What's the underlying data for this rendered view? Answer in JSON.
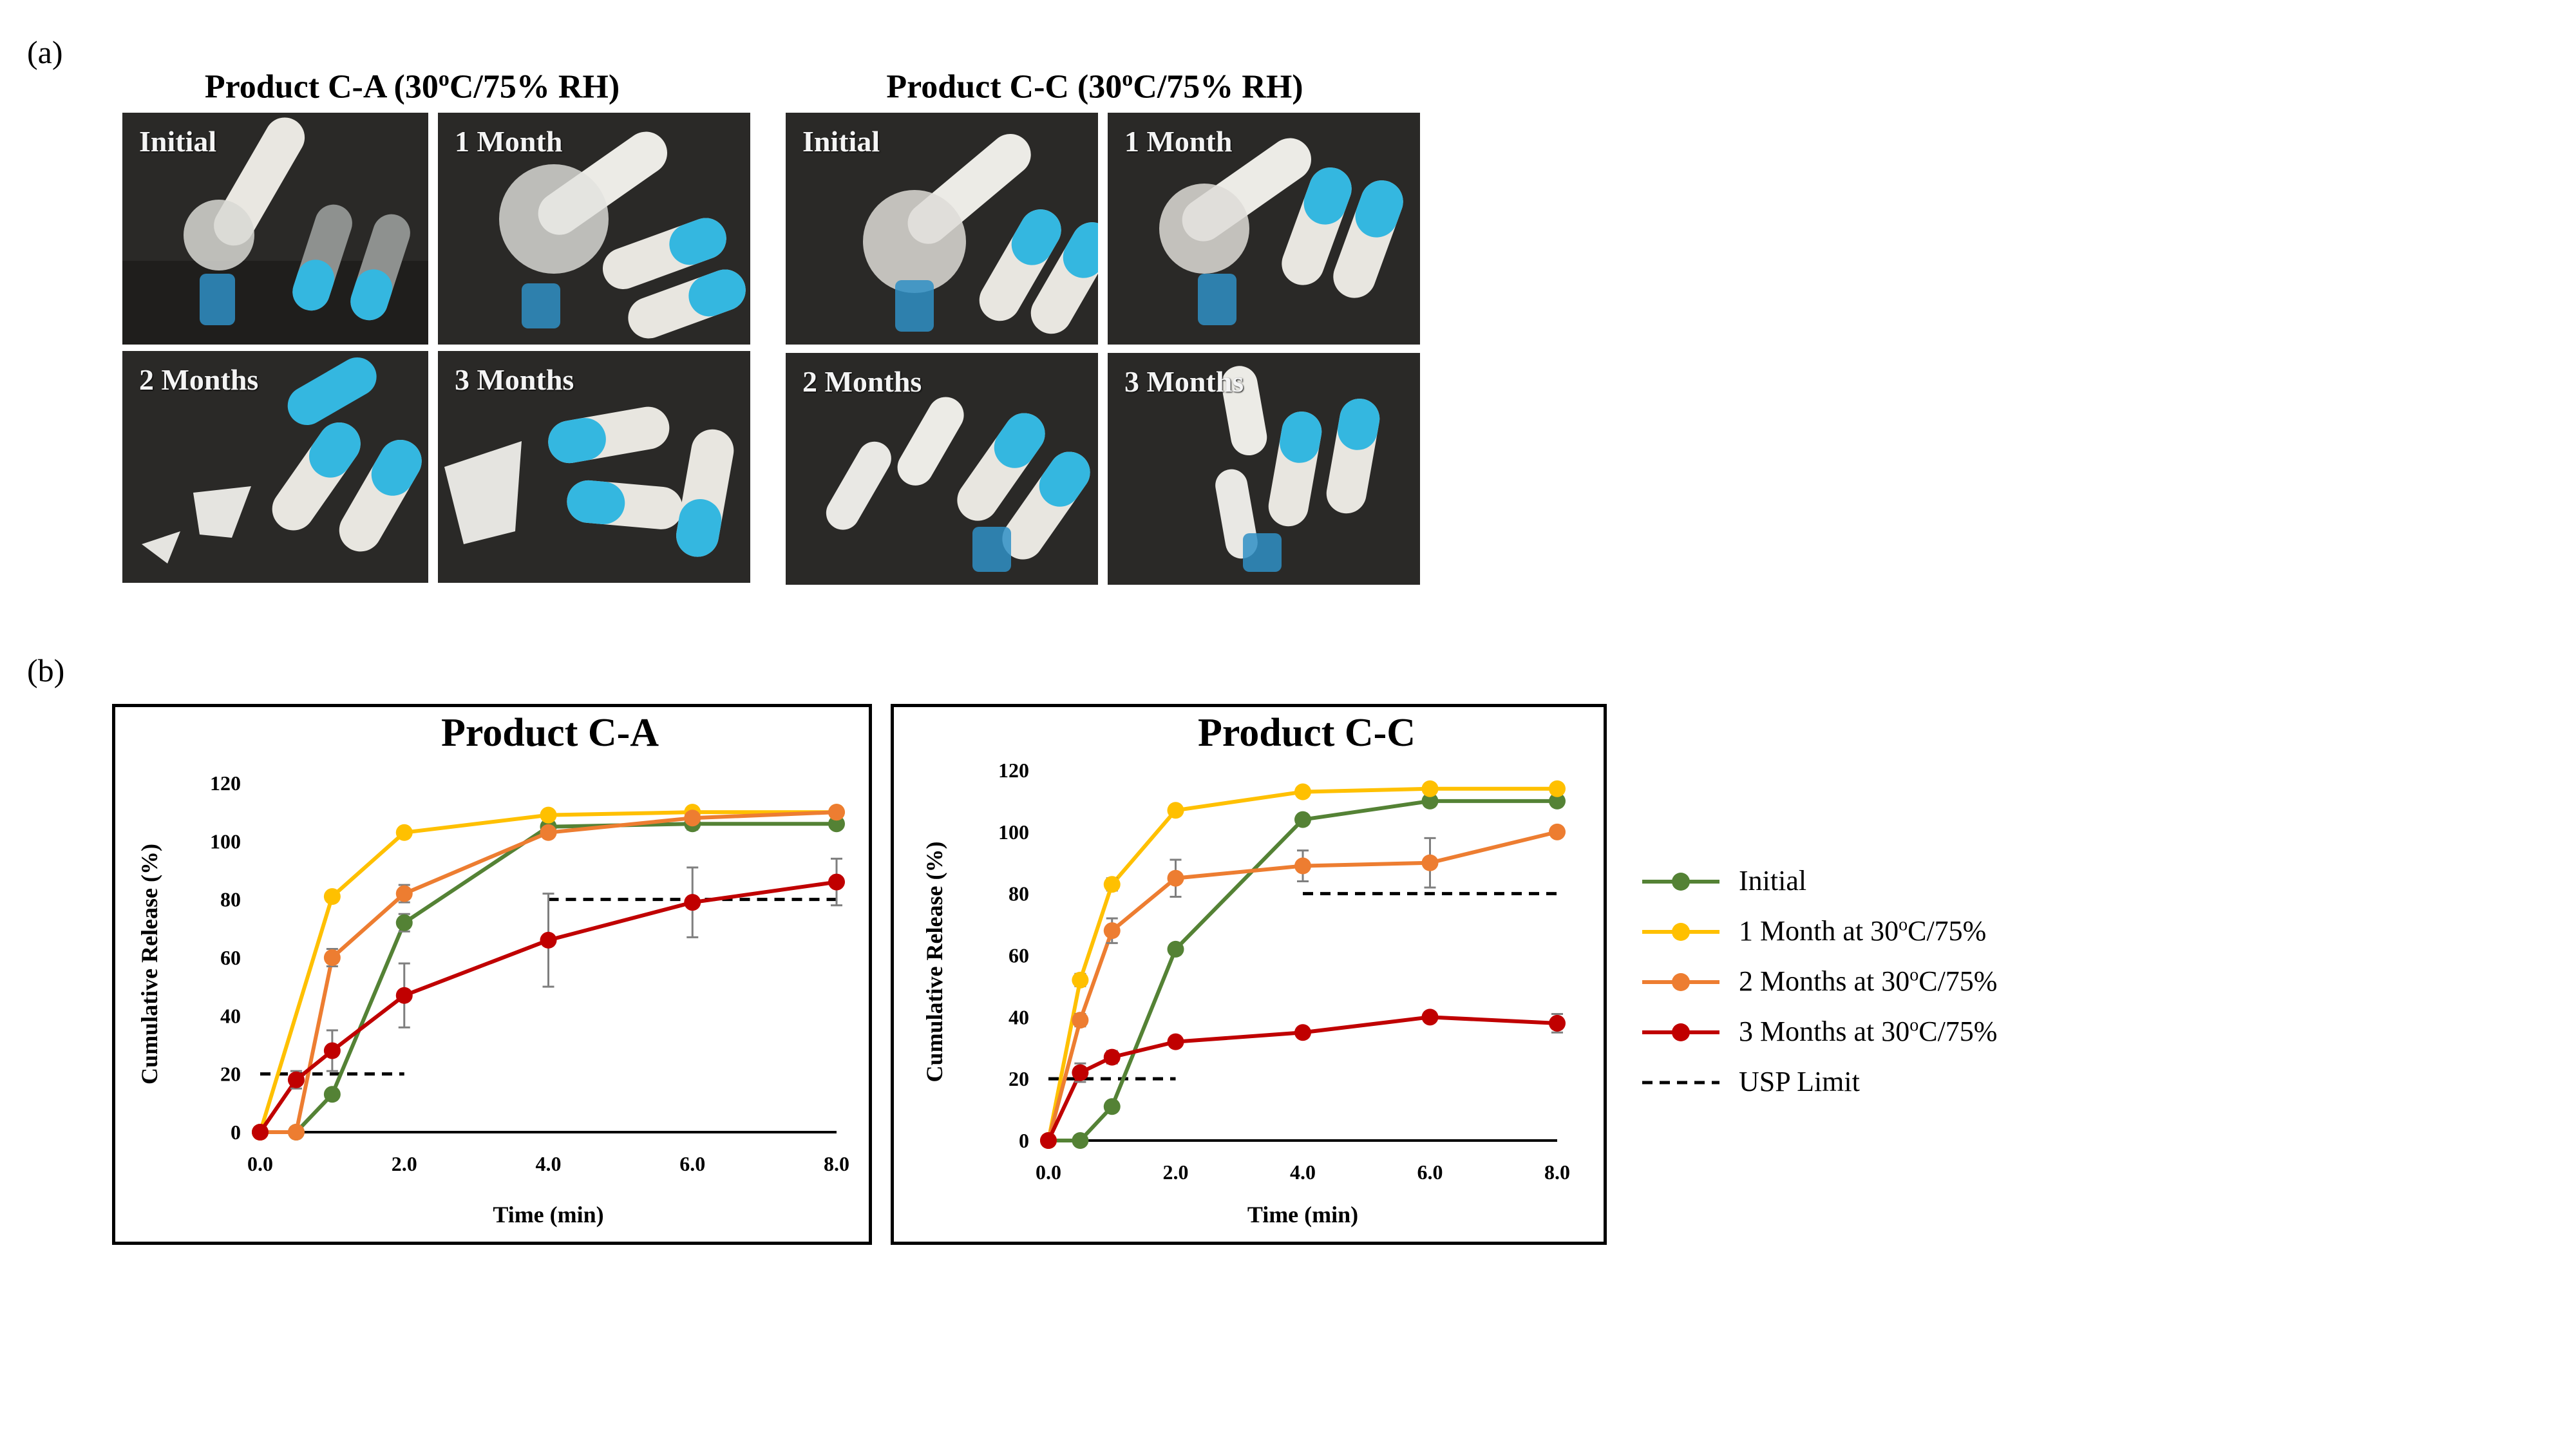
{
  "panel_a_label": "(a)",
  "panel_b_label": "(b)",
  "photo_groups": [
    {
      "title_prefix": "Product C-A (30",
      "title_sup": "o",
      "title_suffix": "C/75% RH)",
      "photos": [
        "Initial",
        "1 Month",
        "2 Months",
        "3 Months"
      ]
    },
    {
      "title_prefix": "Product C-C (30",
      "title_sup": "o",
      "title_suffix": "C/75% RH)",
      "photos": [
        "Initial",
        "1 Month",
        "2 Months",
        "3 Months"
      ]
    }
  ],
  "colors": {
    "initial": "#548235",
    "m1": "#ffc000",
    "m2": "#ed7d31",
    "m3": "#c00000",
    "usp": "#000000",
    "error": "#7f7f7f"
  },
  "legend": [
    {
      "key": "initial",
      "pre": "Initial",
      "sup": "",
      "post": "",
      "dashed": false
    },
    {
      "key": "m1",
      "pre": "1 Month at 30",
      "sup": "o",
      "post": "C/75%",
      "dashed": false
    },
    {
      "key": "m2",
      "pre": "2 Months at 30",
      "sup": "o",
      "post": "C/75%",
      "dashed": false
    },
    {
      "key": "m3",
      "pre": "3 Months at 30",
      "sup": "o",
      "post": "C/75%",
      "dashed": false
    },
    {
      "key": "usp",
      "pre": "USP Limit",
      "sup": "",
      "post": "",
      "dashed": true
    }
  ],
  "chart_data": [
    {
      "type": "line",
      "title": "Product C-A",
      "xlabel": "Time (min)",
      "ylabel": "Cumulative Release (%)",
      "xlim": [
        0,
        8
      ],
      "ylim": [
        0,
        120
      ],
      "xticks": [
        "0.0",
        "2.0",
        "4.0",
        "6.0",
        "8.0"
      ],
      "yticks": [
        "0",
        "20",
        "40",
        "60",
        "80",
        "100",
        "120"
      ],
      "series": [
        {
          "key": "initial",
          "x": [
            0,
            0.5,
            1,
            2,
            4,
            6,
            8
          ],
          "y": [
            0,
            0,
            13,
            72,
            105,
            106,
            106
          ],
          "err": [
            0,
            0,
            1,
            3,
            1,
            2,
            1
          ]
        },
        {
          "key": "m1",
          "x": [
            0,
            1,
            2,
            4,
            6,
            8
          ],
          "y": [
            0,
            81,
            103,
            109,
            110,
            110
          ],
          "err": [
            0,
            0,
            0,
            0,
            0,
            0
          ]
        },
        {
          "key": "m2",
          "x": [
            0,
            0.5,
            1,
            2,
            4,
            6,
            8
          ],
          "y": [
            0,
            0,
            60,
            82,
            103,
            108,
            110
          ],
          "err": [
            0,
            0,
            3,
            3,
            1,
            1,
            0
          ]
        },
        {
          "key": "m3",
          "x": [
            0,
            0.5,
            1,
            2,
            4,
            6,
            8
          ],
          "y": [
            0,
            18,
            28,
            47,
            66,
            79,
            86
          ],
          "err": [
            0,
            3,
            7,
            11,
            16,
            12,
            8
          ]
        }
      ],
      "usp_limits": [
        {
          "x": [
            0,
            2
          ],
          "y": 20
        },
        {
          "x": [
            4,
            8
          ],
          "y": 80
        }
      ]
    },
    {
      "type": "line",
      "title": "Product C-C",
      "xlabel": "Time (min)",
      "ylabel": "Cumulative Release (%)",
      "xlim": [
        0,
        8
      ],
      "ylim": [
        0,
        120
      ],
      "xticks": [
        "0.0",
        "2.0",
        "4.0",
        "6.0",
        "8.0"
      ],
      "yticks": [
        "0",
        "20",
        "40",
        "60",
        "80",
        "100",
        "120"
      ],
      "series": [
        {
          "key": "initial",
          "x": [
            0,
            0.5,
            1,
            2,
            4,
            6,
            8
          ],
          "y": [
            0,
            0,
            11,
            62,
            104,
            110,
            110
          ],
          "err": [
            0,
            0,
            1,
            1,
            1,
            1,
            1
          ]
        },
        {
          "key": "m1",
          "x": [
            0,
            0.5,
            1,
            2,
            4,
            6,
            8
          ],
          "y": [
            0,
            52,
            83,
            107,
            113,
            114,
            114
          ],
          "err": [
            0,
            2,
            2,
            1,
            1,
            1,
            1
          ]
        },
        {
          "key": "m2",
          "x": [
            0,
            0.5,
            1,
            2,
            4,
            6,
            8
          ],
          "y": [
            0,
            39,
            68,
            85,
            89,
            90,
            100
          ],
          "err": [
            0,
            2,
            4,
            6,
            5,
            8,
            1
          ]
        },
        {
          "key": "m3",
          "x": [
            0,
            0.5,
            1,
            2,
            4,
            6,
            8
          ],
          "y": [
            0,
            22,
            27,
            32,
            35,
            40,
            38
          ],
          "err": [
            0,
            3,
            2,
            1,
            1,
            1,
            3
          ]
        }
      ],
      "usp_limits": [
        {
          "x": [
            0,
            2
          ],
          "y": 20
        },
        {
          "x": [
            4,
            8
          ],
          "y": 80
        }
      ]
    }
  ]
}
